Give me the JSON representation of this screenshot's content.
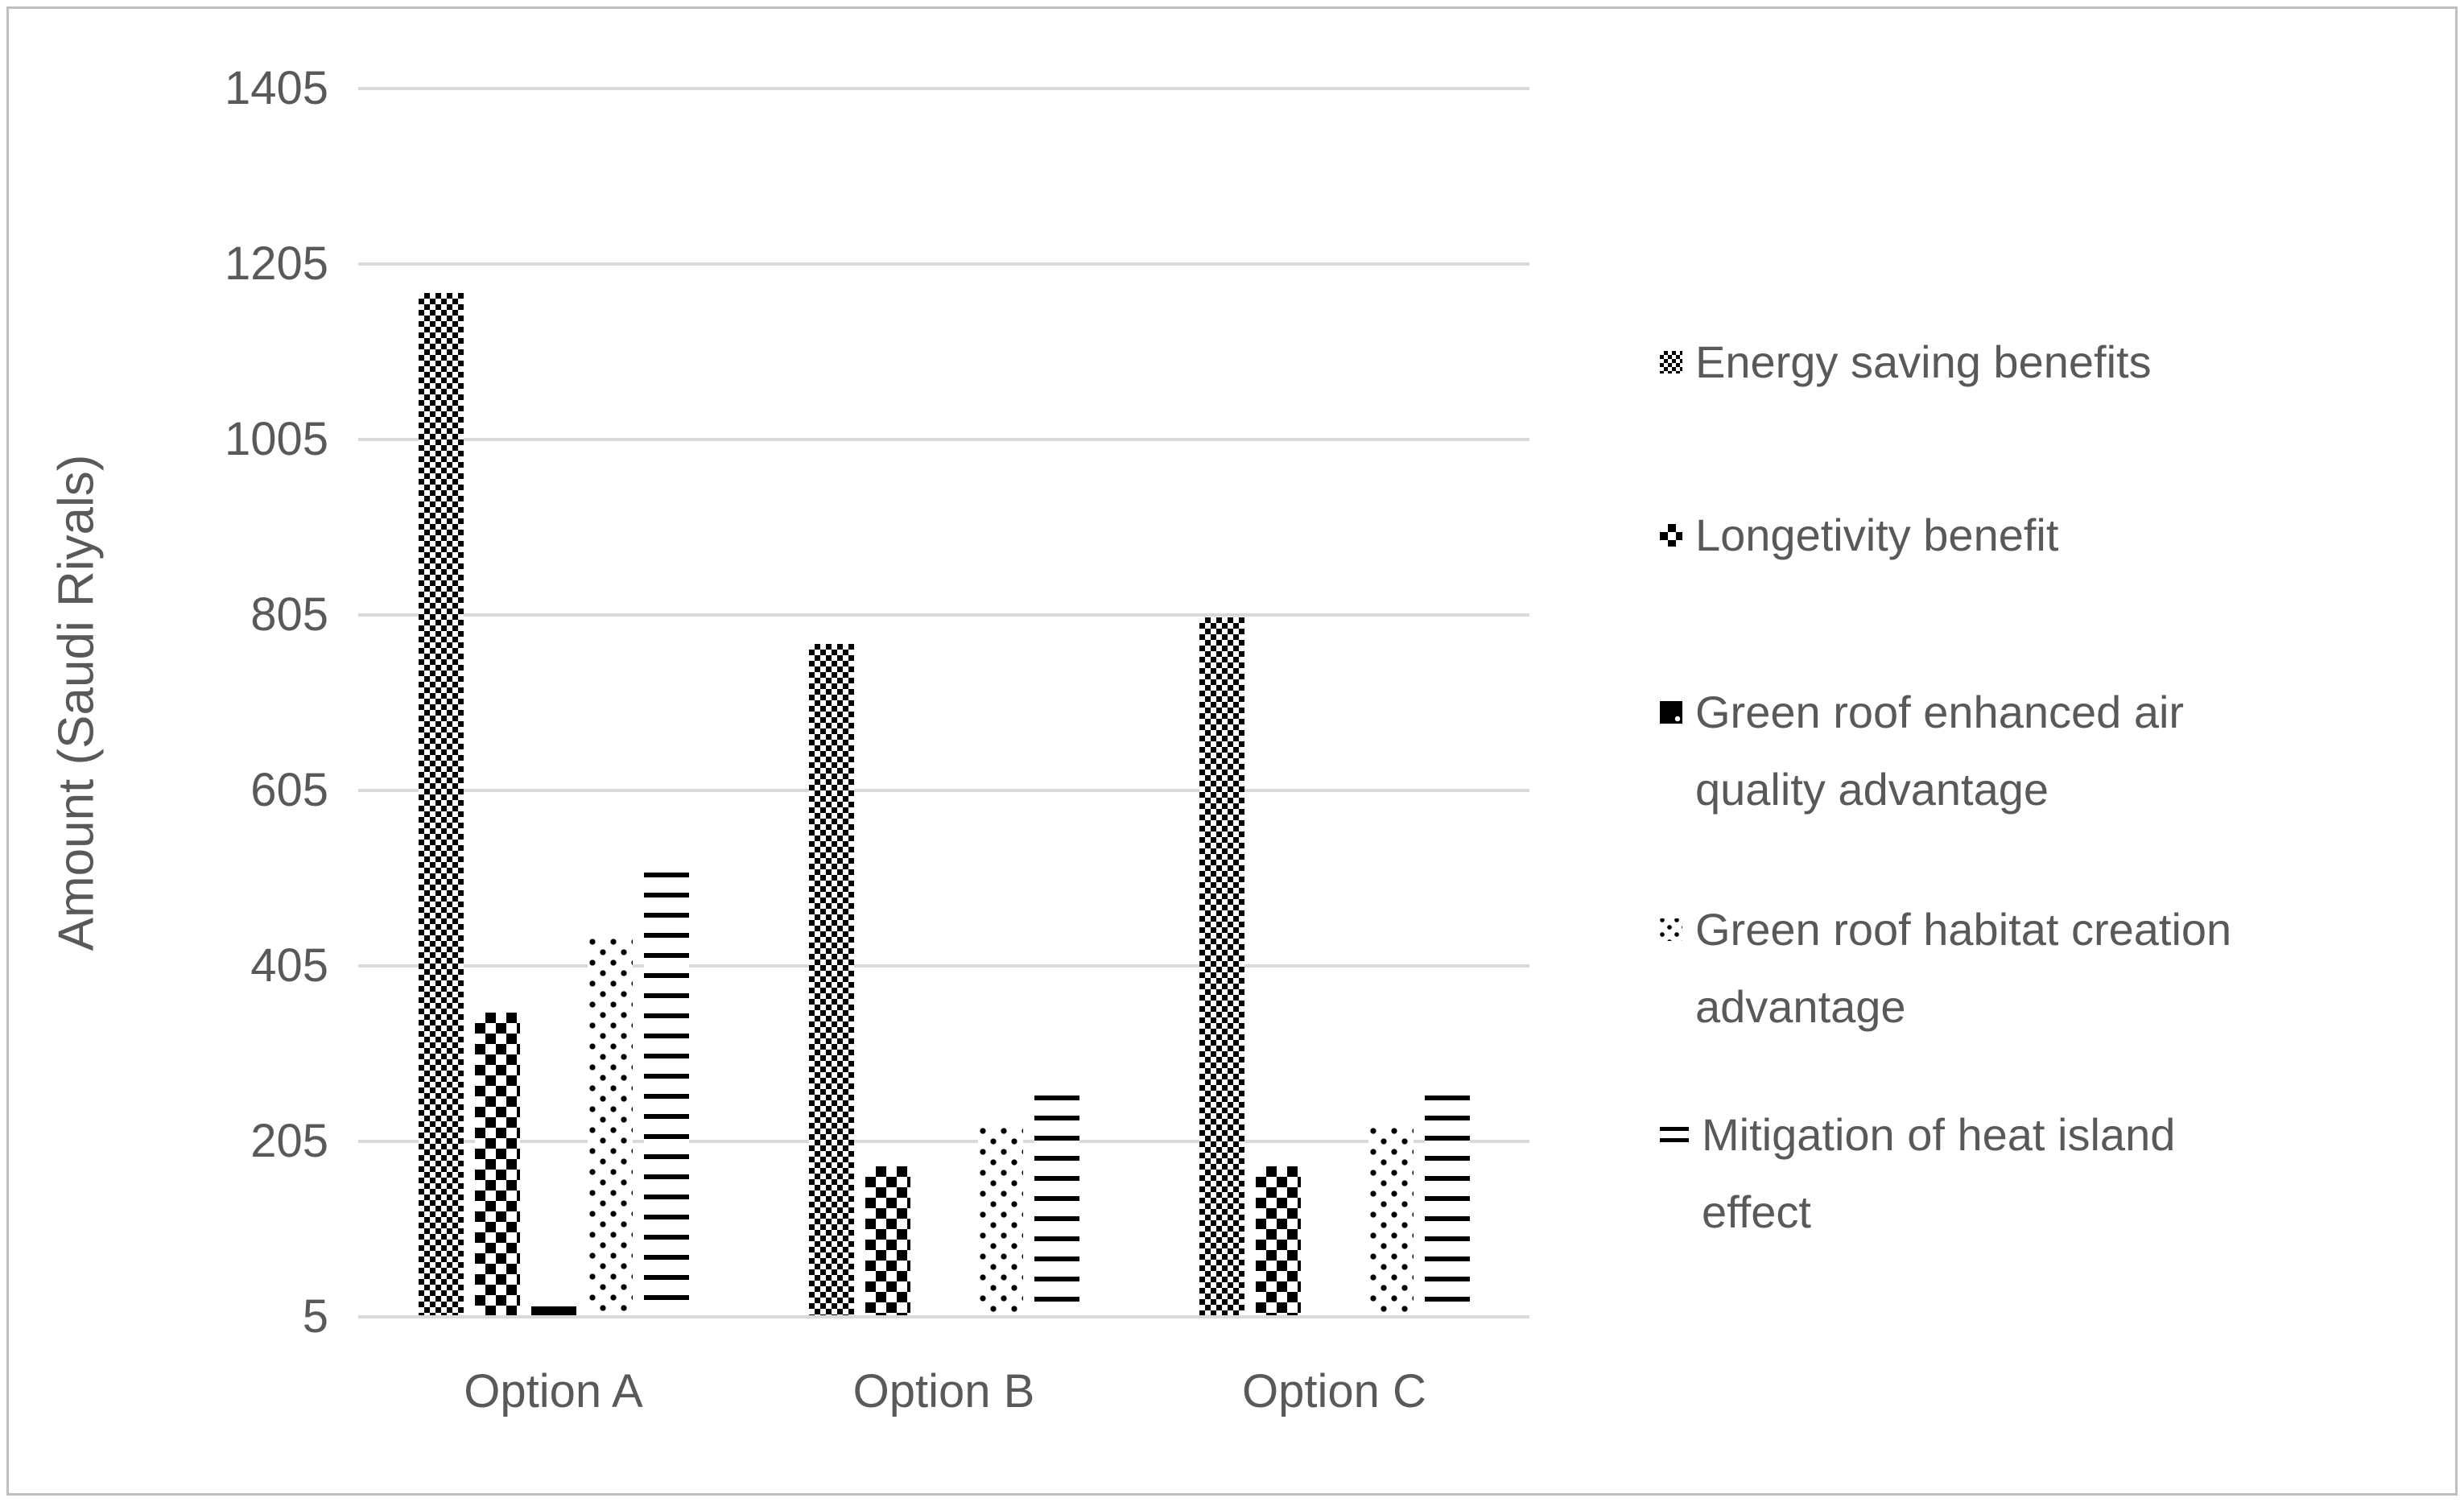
{
  "chart_data": {
    "type": "bar",
    "title": "",
    "xlabel": "",
    "ylabel": "Amount (Saudi Riyals)",
    "categories": [
      "Option A",
      "Option B",
      "Option C"
    ],
    "series": [
      {
        "name": "Energy saving benefits",
        "label_lines": [
          "Energy saving benefits"
        ],
        "pattern": "fine-checker",
        "values": [
          1170,
          770,
          800
        ]
      },
      {
        "name": "Longetivity benefit",
        "label_lines": [
          "Longetivity benefit"
        ],
        "pattern": "coarse-checker",
        "values": [
          350,
          175,
          175
        ]
      },
      {
        "name": "Green roof enhanced air quality advantage",
        "label_lines": [
          "Green roof enhanced air",
          "quality advantage"
        ],
        "pattern": "solid-black",
        "values": [
          15,
          5,
          5
        ]
      },
      {
        "name": "Green roof habitat creation advantage",
        "label_lines": [
          "Green roof habitat creation",
          "advantage"
        ],
        "pattern": "dots",
        "values": [
          435,
          220,
          220
        ]
      },
      {
        "name": "Mitigation of heat island effect",
        "label_lines": [
          "Mitigation of heat island",
          "effect"
        ],
        "pattern": "horizontal-lines",
        "values": [
          510,
          255,
          255
        ]
      }
    ],
    "y_axis": {
      "min": 5,
      "max": 1405,
      "tick_step": 200,
      "ticks": [
        5,
        205,
        405,
        605,
        805,
        1005,
        1205,
        1405
      ]
    },
    "grid": true,
    "legend_position": "right"
  },
  "colors": {
    "text": "#595959",
    "gridline": "#d9d9d9",
    "pattern_black": "#000000",
    "background": "#ffffff",
    "frame_border": "#bfbfbf"
  }
}
